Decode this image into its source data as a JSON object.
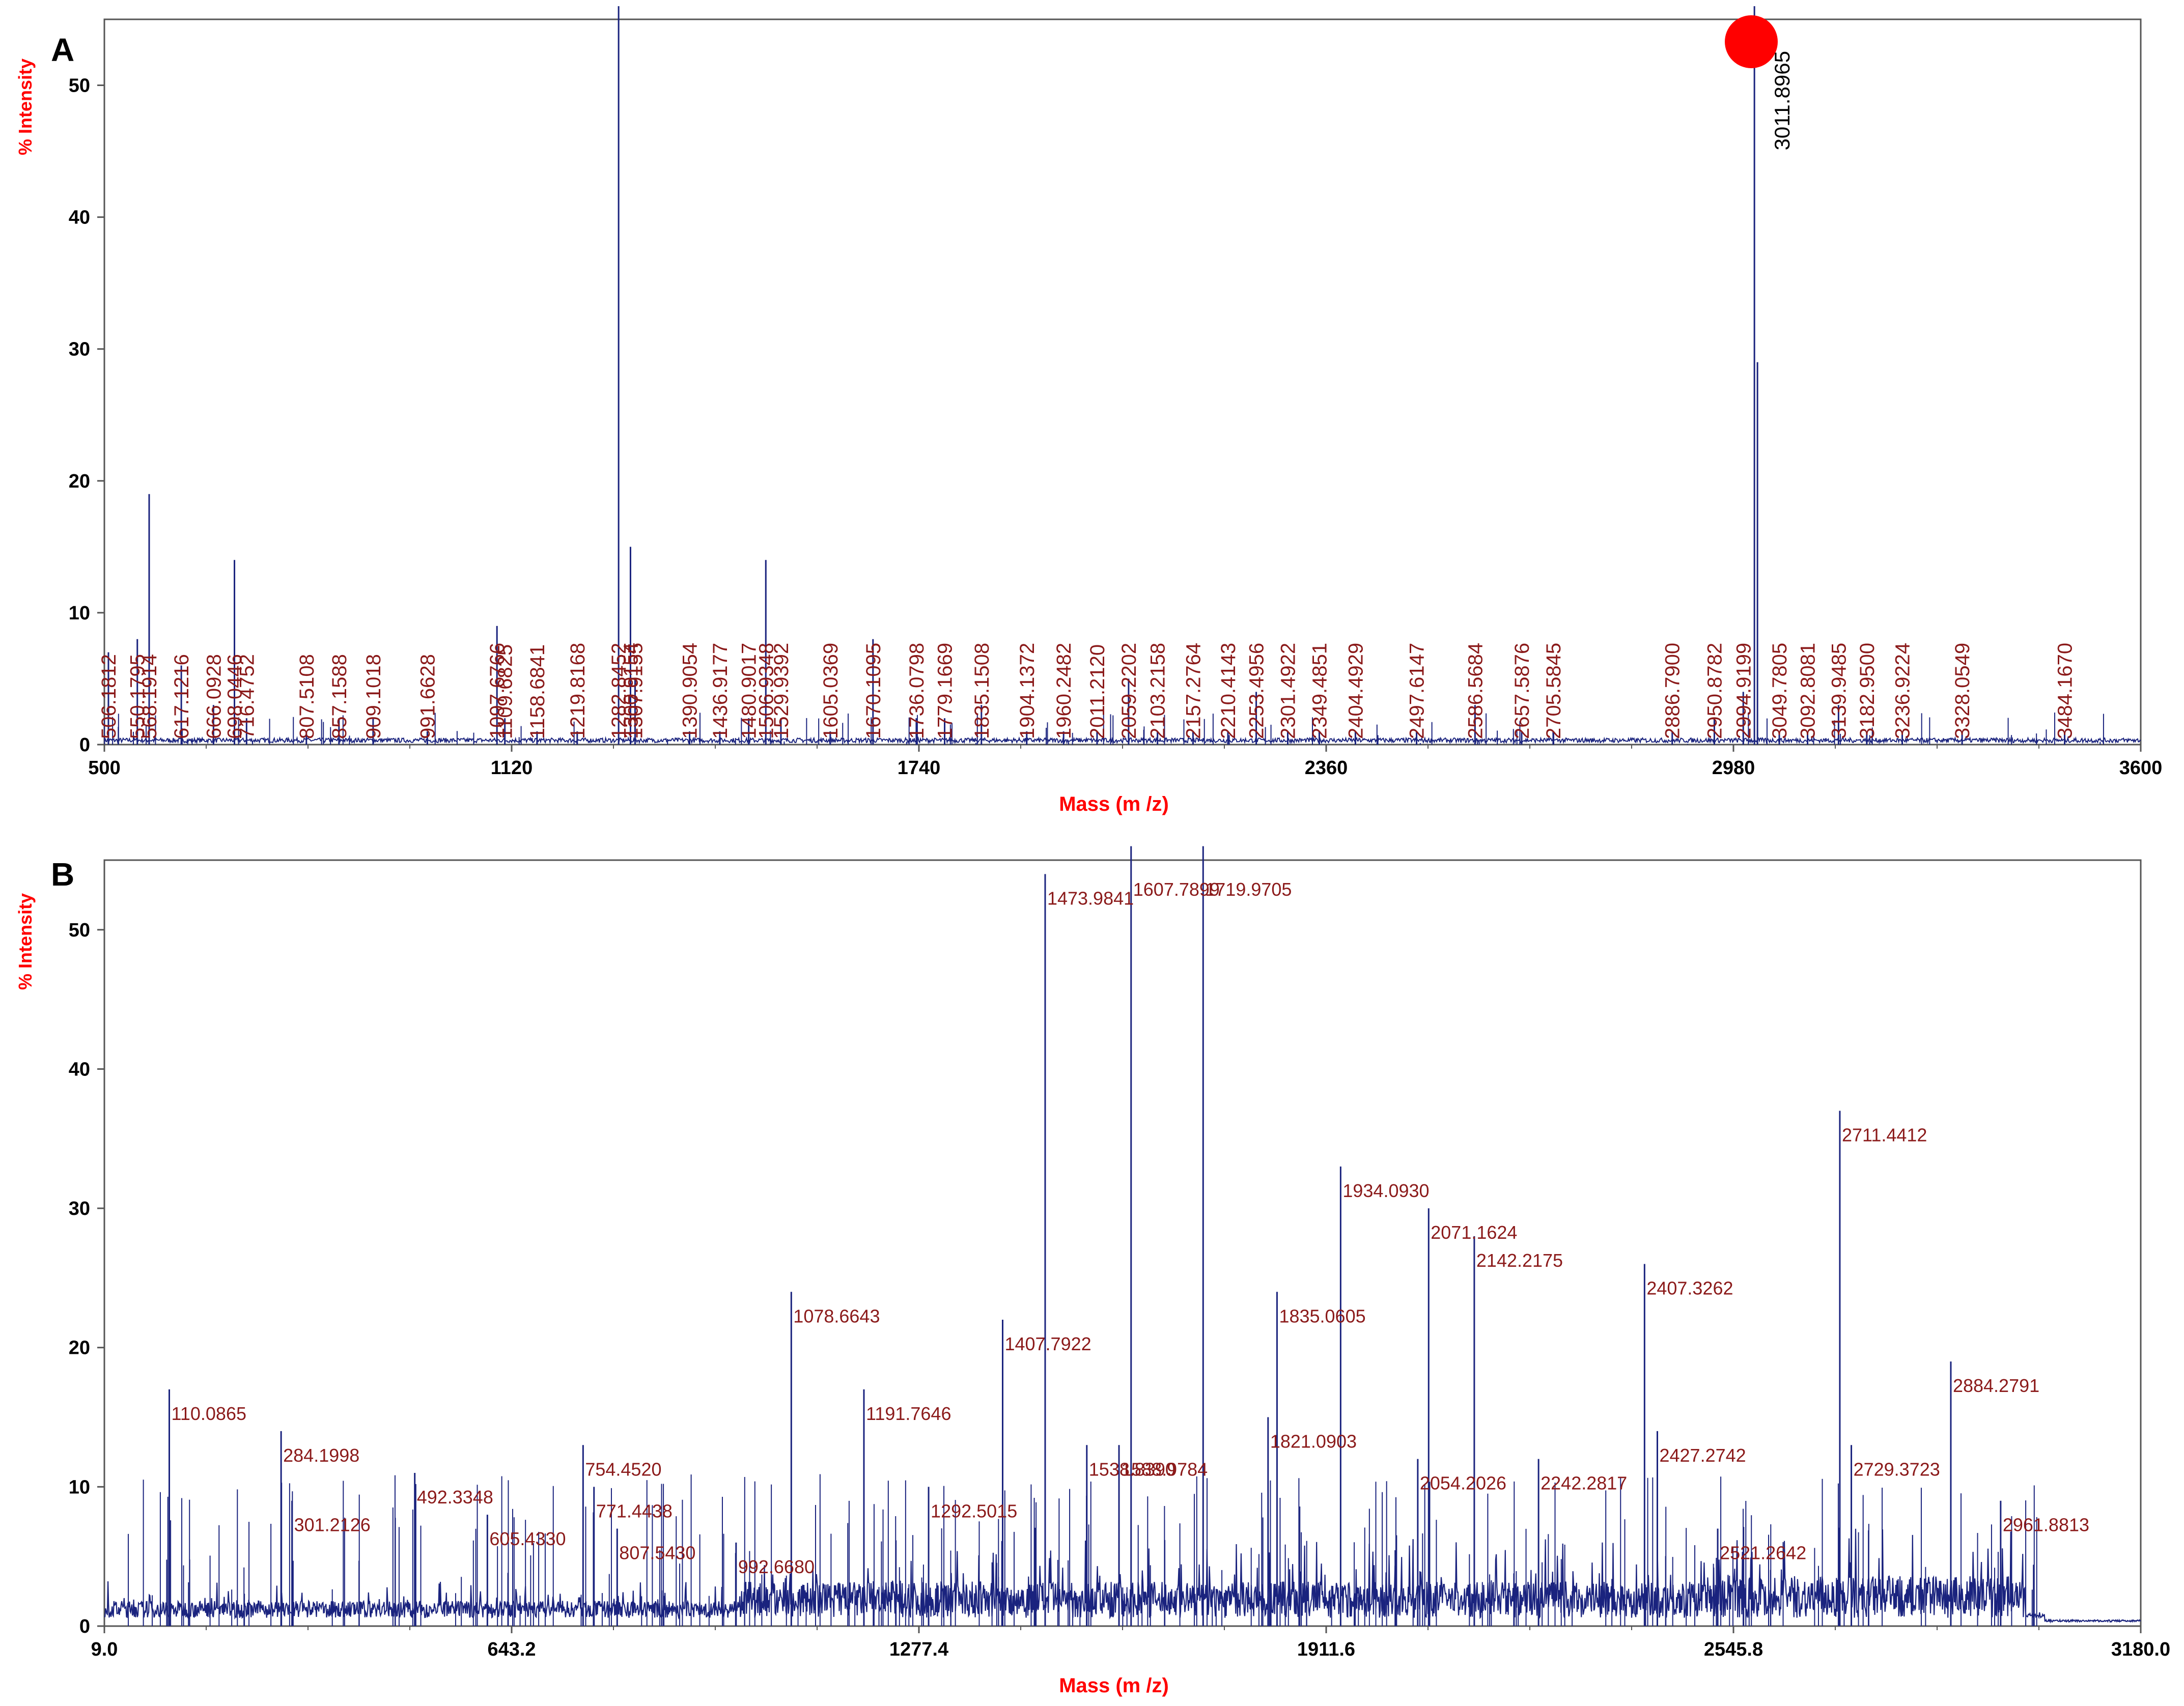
{
  "chart_data": [
    {
      "panel": "A",
      "type": "line",
      "xlabel": "Mass (m /z)",
      "ylabel": "% Intensity",
      "xlim": [
        500,
        3600
      ],
      "ylim": [
        0,
        55
      ],
      "x_ticks": [
        "500",
        "1120",
        "1740",
        "2360",
        "2980",
        "3600"
      ],
      "y_ticks": [
        "0",
        "10",
        "20",
        "30",
        "40",
        "50"
      ],
      "highlight": {
        "label": "3011.8965",
        "mass": 3011.8965,
        "color": "#ff0000"
      },
      "peaks": [
        {
          "mass": 506.1812,
          "intensity": 7,
          "label": "506.1812"
        },
        {
          "mass": 550.1795,
          "intensity": 8,
          "label": "550.1795"
        },
        {
          "mass": 568.1914,
          "intensity": 19,
          "label": "568.1914"
        },
        {
          "mass": 617.1216,
          "intensity": 6,
          "label": "617.1216"
        },
        {
          "mass": 666.0928,
          "intensity": 3,
          "label": "666.0928"
        },
        {
          "mass": 698.0446,
          "intensity": 14,
          "label": "698.0446"
        },
        {
          "mass": 716.4752,
          "intensity": 2,
          "label": "716.4752"
        },
        {
          "mass": 807.5108,
          "intensity": 1,
          "label": "807.5108"
        },
        {
          "mass": 857.1588,
          "intensity": 2,
          "label": "857.1588"
        },
        {
          "mass": 909.1018,
          "intensity": 2,
          "label": "909.1018"
        },
        {
          "mass": 991.6628,
          "intensity": 1,
          "label": "991.6628"
        },
        {
          "mass": 1097.6766,
          "intensity": 9,
          "label": "1097.6766"
        },
        {
          "mass": 1109.6825,
          "intensity": 2,
          "label": "1109.6825"
        },
        {
          "mass": 1158.6841,
          "intensity": 1,
          "label": "1158.6841"
        },
        {
          "mass": 1219.8168,
          "intensity": 1,
          "label": "1219.8168"
        },
        {
          "mass": 1282.8452,
          "intensity": 56,
          "label": "1282.8452"
        },
        {
          "mass": 1300.9154,
          "intensity": 15,
          "label": "1300.9154"
        },
        {
          "mass": 1307.9155,
          "intensity": 5,
          "label": "1307.9155"
        },
        {
          "mass": 1390.9054,
          "intensity": 1,
          "label": "1390.9054"
        },
        {
          "mass": 1436.9177,
          "intensity": 1,
          "label": "1436.9177"
        },
        {
          "mass": 1480.9017,
          "intensity": 2,
          "label": "1480.9017"
        },
        {
          "mass": 1506.9348,
          "intensity": 14,
          "label": "1506.9348"
        },
        {
          "mass": 1529.9392,
          "intensity": 2,
          "label": "1529.9392"
        },
        {
          "mass": 1605.0369,
          "intensity": 1,
          "label": "1605.0369"
        },
        {
          "mass": 1670.1095,
          "intensity": 8,
          "label": "1670.1095"
        },
        {
          "mass": 1736.0798,
          "intensity": 2,
          "label": "1736.0798"
        },
        {
          "mass": 1779.1669,
          "intensity": 2,
          "label": "1779.1669"
        },
        {
          "mass": 1835.1508,
          "intensity": 3,
          "label": "1835.1508"
        },
        {
          "mass": 1904.1372,
          "intensity": 1,
          "label": "1904.1372"
        },
        {
          "mass": 1960.2482,
          "intensity": 1,
          "label": "1960.2482"
        },
        {
          "mass": 2011.212,
          "intensity": 1,
          "label": "2011.2120"
        },
        {
          "mass": 2059.2202,
          "intensity": 5,
          "label": "2059.2202"
        },
        {
          "mass": 2103.2158,
          "intensity": 1,
          "label": "2103.2158"
        },
        {
          "mass": 2157.2764,
          "intensity": 1,
          "label": "2157.2764"
        },
        {
          "mass": 2210.4143,
          "intensity": 1,
          "label": "2210.4143"
        },
        {
          "mass": 2253.4956,
          "intensity": 4,
          "label": "2253.4956"
        },
        {
          "mass": 2301.4922,
          "intensity": 1,
          "label": "2301.4922"
        },
        {
          "mass": 2349.4851,
          "intensity": 1,
          "label": "2349.4851"
        },
        {
          "mass": 2404.4929,
          "intensity": 1,
          "label": "2404.4929"
        },
        {
          "mass": 2497.6147,
          "intensity": 1,
          "label": "2497.6147"
        },
        {
          "mass": 2586.5684,
          "intensity": 3,
          "label": "2586.5684"
        },
        {
          "mass": 2657.5876,
          "intensity": 1,
          "label": "2657.5876"
        },
        {
          "mass": 2705.5845,
          "intensity": 1,
          "label": "2705.5845"
        },
        {
          "mass": 2886.79,
          "intensity": 1,
          "label": "2886.7900"
        },
        {
          "mass": 2950.8782,
          "intensity": 2,
          "label": "2950.8782"
        },
        {
          "mass": 2994.9199,
          "intensity": 4,
          "label": "2994.9199"
        },
        {
          "mass": 3011.8965,
          "intensity": 56,
          "label": ""
        },
        {
          "mass": 3049.7805,
          "intensity": 1,
          "label": "3049.7805"
        },
        {
          "mass": 3092.8081,
          "intensity": 1,
          "label": "3092.8081"
        },
        {
          "mass": 3139.9485,
          "intensity": 3,
          "label": "3139.9485"
        },
        {
          "mass": 3182.95,
          "intensity": 1,
          "label": "3182.9500"
        },
        {
          "mass": 3236.9224,
          "intensity": 1,
          "label": "3236.9224"
        },
        {
          "mass": 3328.0549,
          "intensity": 1,
          "label": "3328.0549"
        },
        {
          "mass": 3484.167,
          "intensity": 1,
          "label": "3484.1670"
        }
      ]
    },
    {
      "panel": "B",
      "type": "line",
      "xlabel": "Mass (m /z)",
      "ylabel": "% Intensity",
      "xlim": [
        9.0,
        3180.0
      ],
      "ylim": [
        0,
        55
      ],
      "x_ticks": [
        "9.0",
        "643.2",
        "1277.4",
        "1911.6",
        "2545.8",
        "3180.0"
      ],
      "y_ticks": [
        "0",
        "10",
        "20",
        "30",
        "40",
        "50"
      ],
      "peaks": [
        {
          "mass": 110.0865,
          "intensity": 17,
          "label": "110.0865"
        },
        {
          "mass": 284.1998,
          "intensity": 14,
          "label": "284.1998"
        },
        {
          "mass": 301.2126,
          "intensity": 9,
          "label": "301.2126"
        },
        {
          "mass": 492.3348,
          "intensity": 11,
          "label": "492.3348"
        },
        {
          "mass": 605.433,
          "intensity": 8,
          "label": "605.4330"
        },
        {
          "mass": 754.452,
          "intensity": 13,
          "label": "754.4520"
        },
        {
          "mass": 771.4438,
          "intensity": 10,
          "label": "771.4438"
        },
        {
          "mass": 807.543,
          "intensity": 7,
          "label": "807.5430"
        },
        {
          "mass": 992.668,
          "intensity": 6,
          "label": "992.6680"
        },
        {
          "mass": 1078.6643,
          "intensity": 24,
          "label": "1078.6643"
        },
        {
          "mass": 1191.7646,
          "intensity": 17,
          "label": "1191.7646"
        },
        {
          "mass": 1292.5015,
          "intensity": 10,
          "label": "1292.5015"
        },
        {
          "mass": 1407.7922,
          "intensity": 22,
          "label": "1407.7922"
        },
        {
          "mass": 1473.9841,
          "intensity": 54,
          "label": "1473.9841"
        },
        {
          "mass": 1538.839,
          "intensity": 13,
          "label": "1538.8390"
        },
        {
          "mass": 1588.9784,
          "intensity": 13,
          "label": "1588.9784"
        },
        {
          "mass": 1607.7899,
          "intensity": 56,
          "label": "1607.7899"
        },
        {
          "mass": 1719.9705,
          "intensity": 56,
          "label": "1719.9705"
        },
        {
          "mass": 1821.0903,
          "intensity": 15,
          "label": "1821.0903"
        },
        {
          "mass": 1835.0605,
          "intensity": 24,
          "label": "1835.0605"
        },
        {
          "mass": 1934.093,
          "intensity": 33,
          "label": "1934.0930"
        },
        {
          "mass": 2054.2026,
          "intensity": 12,
          "label": "2054.2026"
        },
        {
          "mass": 2071.1624,
          "intensity": 30,
          "label": "2071.1624"
        },
        {
          "mass": 2142.2175,
          "intensity": 28,
          "label": "2142.2175"
        },
        {
          "mass": 2242.2817,
          "intensity": 12,
          "label": "2242.2817"
        },
        {
          "mass": 2407.3262,
          "intensity": 26,
          "label": "2407.3262"
        },
        {
          "mass": 2427.2742,
          "intensity": 14,
          "label": "2427.2742"
        },
        {
          "mass": 2521.2642,
          "intensity": 7,
          "label": "2521.2642"
        },
        {
          "mass": 2711.4412,
          "intensity": 37,
          "label": "2711.4412"
        },
        {
          "mass": 2729.3723,
          "intensity": 13,
          "label": "2729.3723"
        },
        {
          "mass": 2884.2791,
          "intensity": 19,
          "label": "2884.2791"
        },
        {
          "mass": 2961.8813,
          "intensity": 9,
          "label": "2961.8813"
        }
      ]
    }
  ],
  "panels": {
    "a_letter": "A",
    "b_letter": "B"
  }
}
